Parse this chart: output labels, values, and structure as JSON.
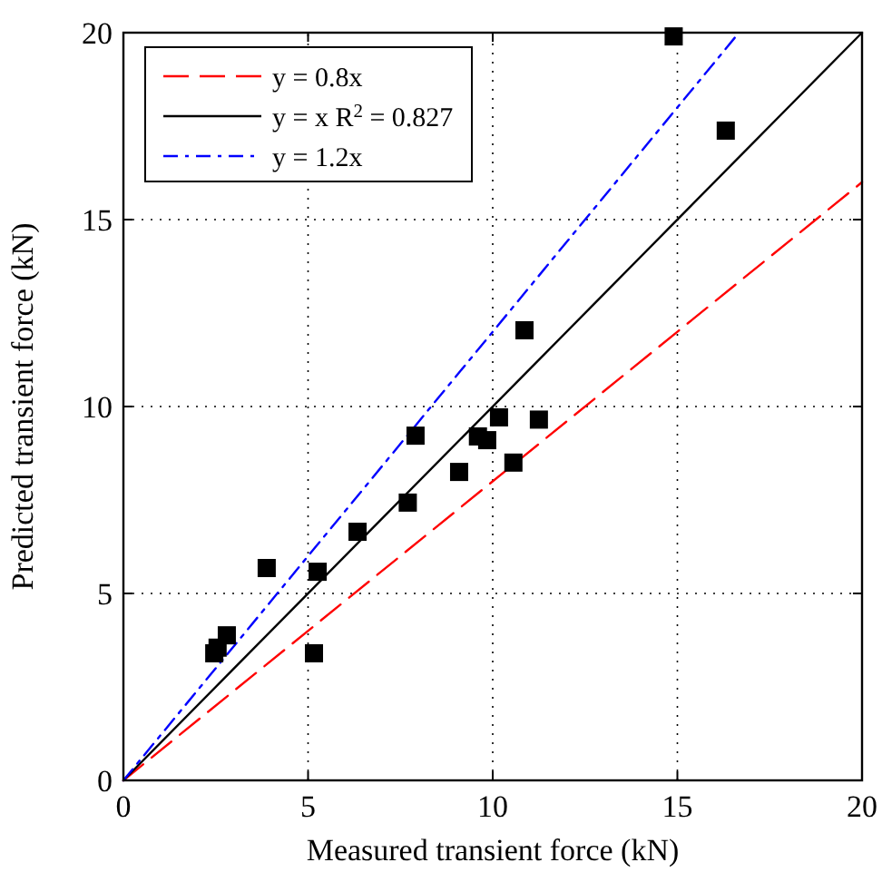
{
  "chart_data": {
    "type": "scatter",
    "xlabel": "Measured transient force (kN)",
    "ylabel": "Predicted transient force (kN)",
    "xlim": [
      0,
      20
    ],
    "ylim": [
      0,
      20
    ],
    "xticks": [
      0,
      5,
      10,
      15,
      20
    ],
    "yticks": [
      0,
      5,
      10,
      15,
      20
    ],
    "grid": true,
    "legend": "top left",
    "marker": "square",
    "series": [
      {
        "color": "#000000",
        "x": [
          2.46,
          2.55,
          2.8,
          3.88,
          5.16,
          5.26,
          6.34,
          7.7,
          7.91,
          9.09,
          9.6,
          9.85,
          10.17,
          10.56,
          10.86,
          11.25,
          14.9,
          16.31
        ],
        "values": [
          3.4,
          3.55,
          3.88,
          5.68,
          3.4,
          5.58,
          6.65,
          7.43,
          9.22,
          8.25,
          9.2,
          9.1,
          9.71,
          8.5,
          12.04,
          9.65,
          19.9,
          17.38
        ]
      },
      {
        "type": "line",
        "name": "y = 0.8x",
        "color": "#ff0000",
        "line_style": "dashed",
        "marker": "none",
        "x": [
          0,
          20
        ],
        "values": [
          0,
          16
        ]
      },
      {
        "type": "line",
        "name": "y = x R$^{2}$ = 0.827",
        "color": "#000000",
        "line_style": "solid",
        "marker": "none",
        "x": [
          0,
          20
        ],
        "values": [
          0,
          20
        ]
      },
      {
        "type": "line",
        "name": "y = 1.2x",
        "color": "#0000ff",
        "line_style": "dashdot",
        "marker": "none",
        "x": [
          0,
          16.667
        ],
        "values": [
          0,
          20
        ]
      }
    ]
  }
}
